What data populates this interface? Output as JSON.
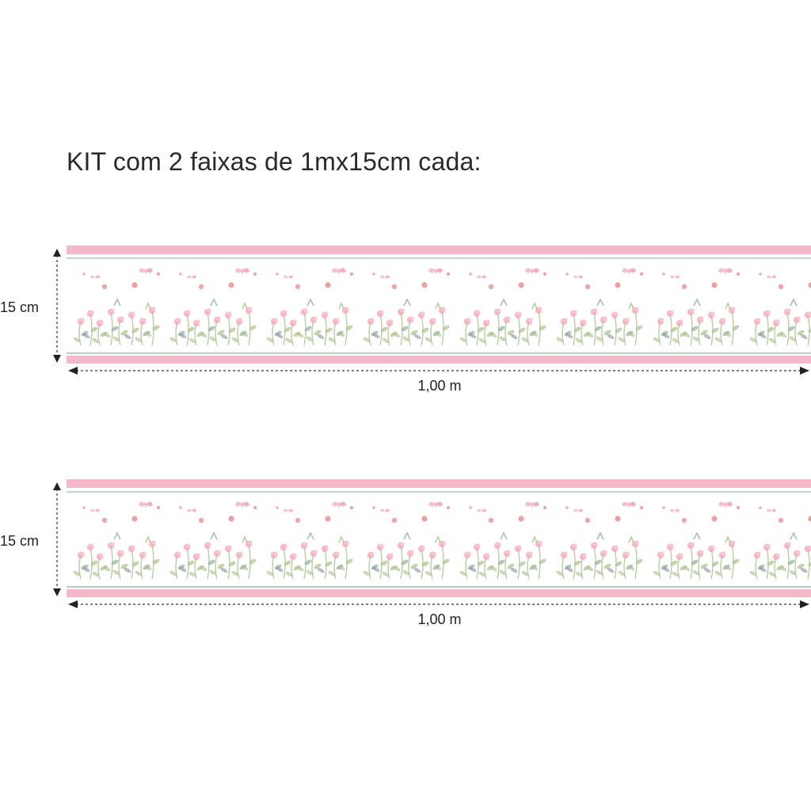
{
  "title": "KIT com 2 faixas de 1mx15cm cada:",
  "strips": [
    {
      "height_label": "15 cm",
      "width_label": "1,00 m"
    },
    {
      "height_label": "15 cm",
      "width_label": "1,00 m"
    }
  ],
  "colors": {
    "band_pink": "#f4b8c8",
    "line_green": "#c9d6cb",
    "flower_pink": "#f2a6b8",
    "flower_red": "#e07a7a",
    "leaf_green": "#a8c08a",
    "leaf_sage": "#8fb0a0",
    "leaf_gray": "#8a8f9a",
    "dimension_line": "#333333"
  },
  "pattern": {
    "repeat_count": 8,
    "motif": "watercolor wildflowers with butterflies"
  }
}
